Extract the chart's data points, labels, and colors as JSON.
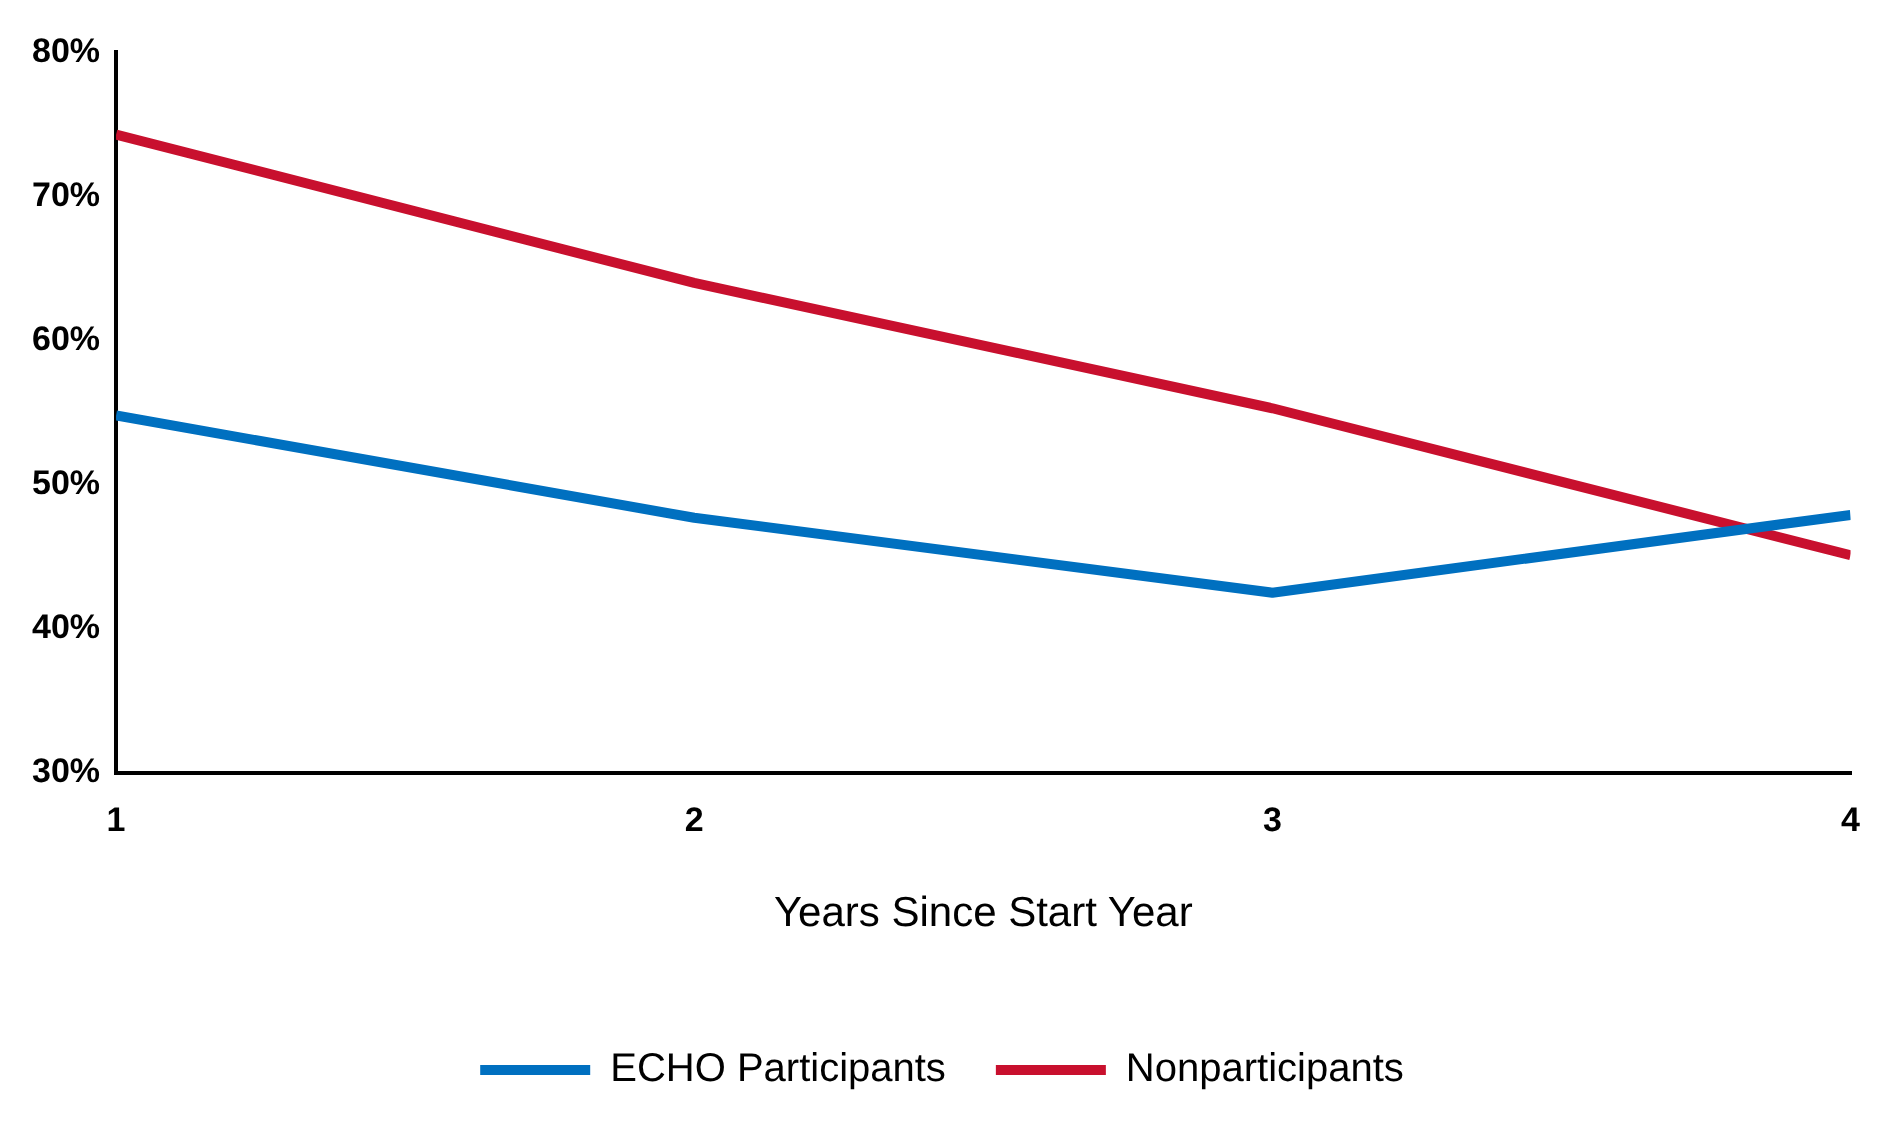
{
  "chart_data": {
    "type": "line",
    "xlabel": "Years Since Start Year",
    "x": [
      1,
      2,
      3,
      4
    ],
    "xlim": [
      1,
      4
    ],
    "xticks": [
      1,
      2,
      3,
      4
    ],
    "ylim": [
      30,
      80
    ],
    "yticks": [
      {
        "value": 30,
        "label": "30%"
      },
      {
        "value": 40,
        "label": "40%"
      },
      {
        "value": 50,
        "label": "50%"
      },
      {
        "value": 60,
        "label": "60%"
      },
      {
        "value": 70,
        "label": "70%"
      },
      {
        "value": 80,
        "label": "80%"
      }
    ],
    "grid": false,
    "legend": "bottom",
    "marker": "none",
    "line_style": "solid",
    "series": [
      {
        "name": "ECHO Participants",
        "color": "#0070c0",
        "values": [
          54.8,
          47.7,
          42.5,
          47.9
        ]
      },
      {
        "name": "Nonparticipants",
        "color": "#c8102e",
        "values": [
          74.3,
          64.0,
          55.3,
          45.1
        ]
      }
    ]
  }
}
